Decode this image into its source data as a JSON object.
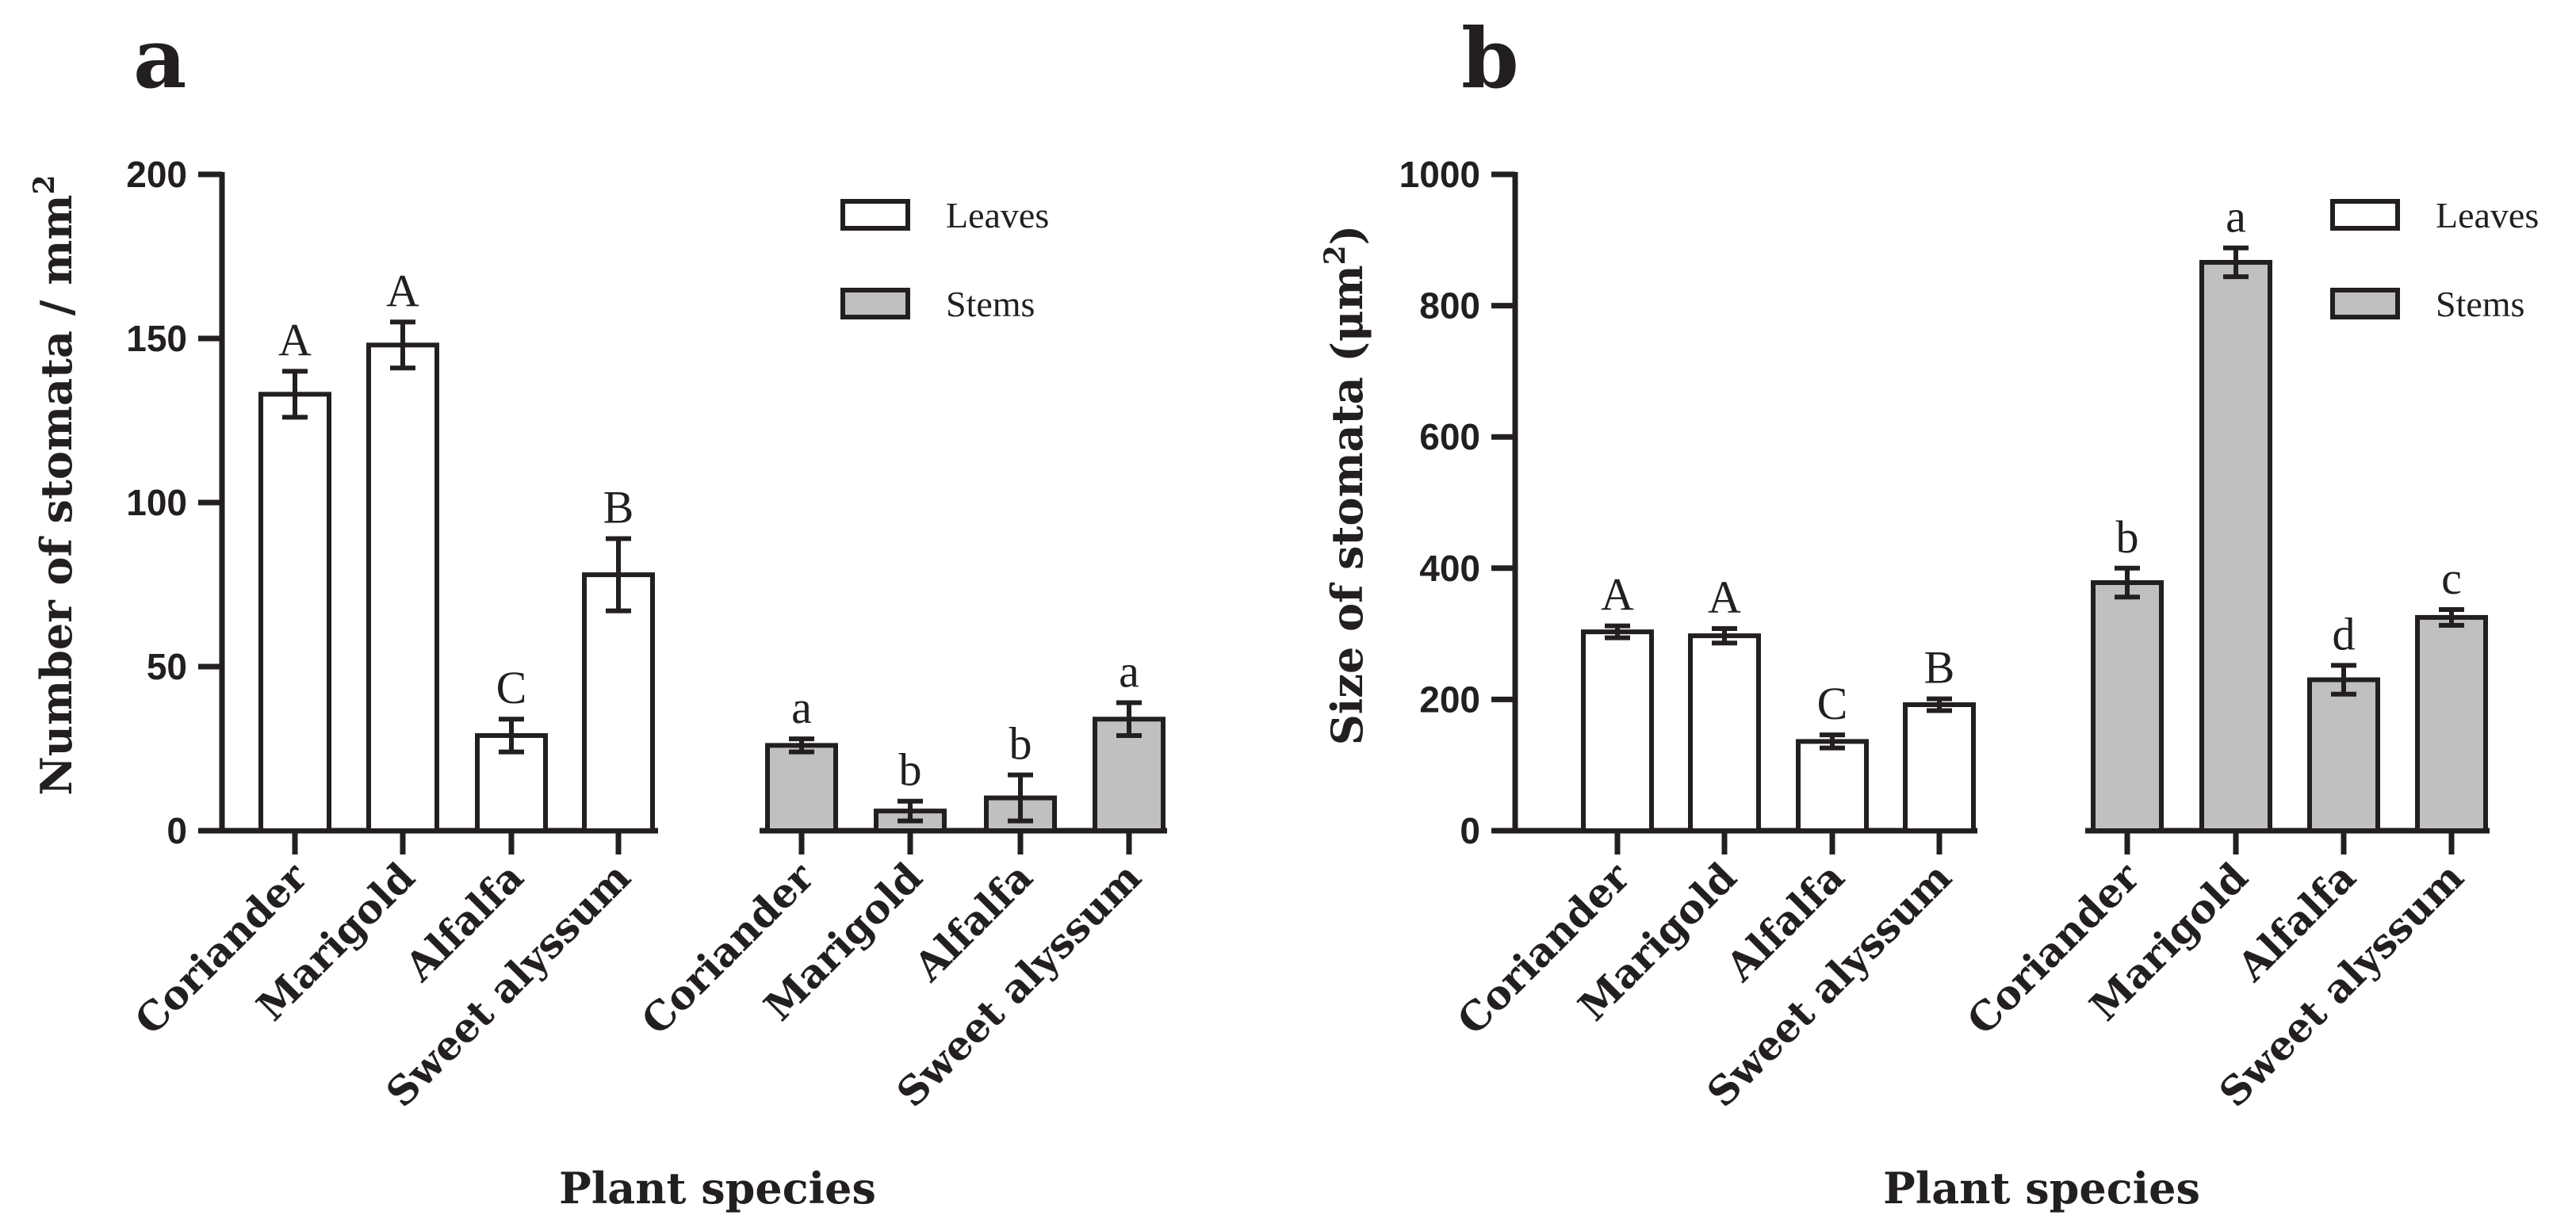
{
  "chart_data": [
    {
      "type": "bar",
      "panel": "a",
      "title": "",
      "xlabel": "Plant species",
      "ylabel": "Number of stomata / mm",
      "ylabel_sup": "2",
      "ylim": [
        0,
        200
      ],
      "yticks": [
        0,
        50,
        100,
        150,
        200
      ],
      "categories": [
        "Coriander",
        "Marigold",
        "Alfalfa",
        "Sweet alyssum"
      ],
      "series": [
        {
          "name": "Leaves",
          "color": "#ffffff",
          "values": [
            133,
            148,
            29,
            78
          ],
          "errors": [
            7,
            7,
            5,
            11
          ],
          "letters": [
            "A",
            "A",
            "C",
            "B"
          ]
        },
        {
          "name": "Stems",
          "color": "#c0c0c0",
          "values": [
            26,
            6,
            10,
            34
          ],
          "errors": [
            2,
            3,
            7,
            5
          ],
          "letters": [
            "a",
            "b",
            "b",
            "a"
          ]
        }
      ],
      "legend": [
        "Leaves",
        "Stems"
      ],
      "legend_position": "top-right"
    },
    {
      "type": "bar",
      "panel": "b",
      "title": "",
      "xlabel": "Plant species",
      "ylabel": "Size of stomata (μm",
      "ylabel_sup": "2",
      "ylabel_suffix": ")",
      "ylim": [
        0,
        1000
      ],
      "yticks": [
        0,
        200,
        400,
        600,
        800,
        1000
      ],
      "categories": [
        "Coriander",
        "Marigold",
        "Alfalfa",
        "Sweet alyssum"
      ],
      "series": [
        {
          "name": "Leaves",
          "color": "#ffffff",
          "values": [
            303,
            297,
            136,
            192
          ],
          "errors": [
            9,
            11,
            10,
            9
          ],
          "letters": [
            "A",
            "A",
            "C",
            "B"
          ]
        },
        {
          "name": "Stems",
          "color": "#c0c0c0",
          "values": [
            378,
            866,
            230,
            325
          ],
          "errors": [
            22,
            22,
            22,
            12
          ],
          "letters": [
            "b",
            "a",
            "d",
            "c"
          ]
        }
      ],
      "legend": [
        "Leaves",
        "Stems"
      ],
      "legend_position": "top-right"
    }
  ]
}
